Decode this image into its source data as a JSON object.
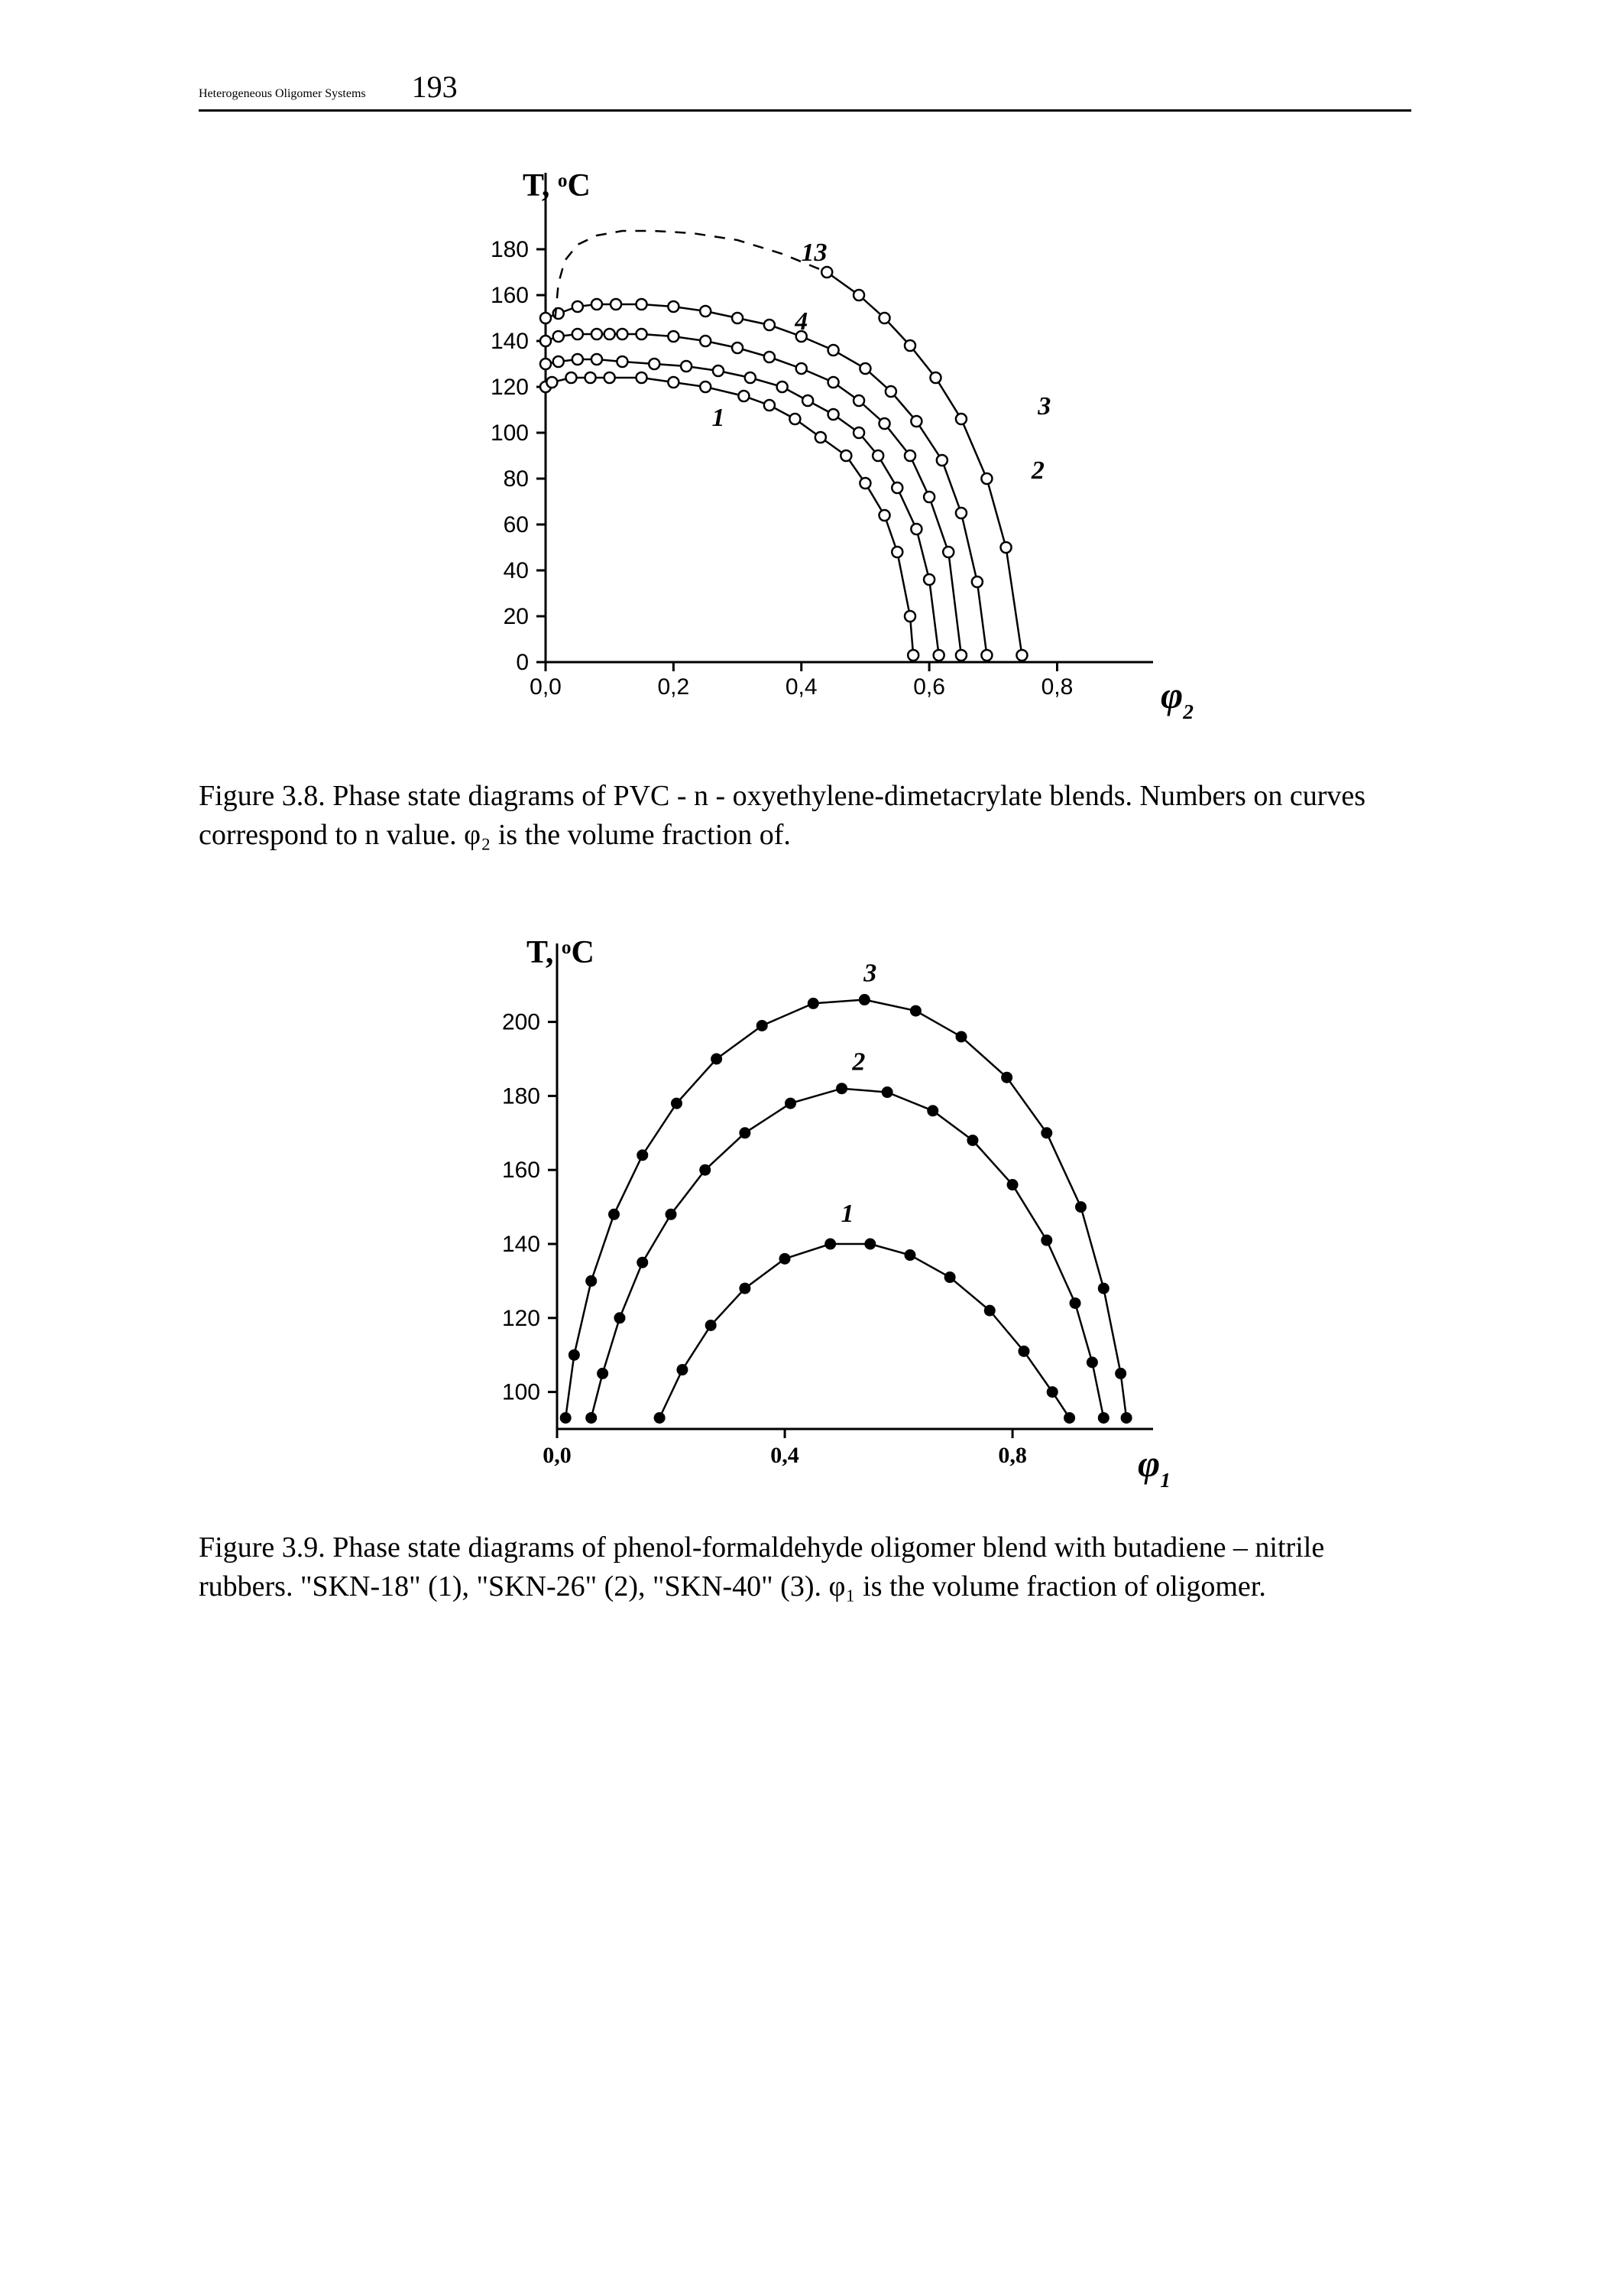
{
  "page": {
    "running_title": "Heterogeneous Oligomer Systems",
    "number": "193"
  },
  "fig8": {
    "type": "line",
    "y_axis": {
      "label_T": "T,",
      "label_unit": "°C",
      "min": 0,
      "max": 200,
      "ticks": [
        0,
        20,
        40,
        60,
        80,
        100,
        120,
        140,
        160,
        180
      ],
      "label_fontsize": 42,
      "tick_fontsize": 30,
      "tick_font": "Arial"
    },
    "x_axis": {
      "label": "φ",
      "label_sub": "2",
      "min": 0.0,
      "max": 0.95,
      "ticks": [
        "0,0",
        "0,2",
        "0,4",
        "0,6",
        "0,8"
      ],
      "tick_vals": [
        0.0,
        0.2,
        0.4,
        0.6,
        0.8
      ],
      "label_fontsize": 50,
      "tick_fontsize": 30
    },
    "marker": {
      "type": "open-circle",
      "radius": 7,
      "stroke": "#000000",
      "fill": "#ffffff",
      "stroke_width": 2.5
    },
    "line_color": "#000000",
    "line_width": 2.5,
    "background": "#ffffff",
    "curves": [
      {
        "id": "1",
        "label_xy": [
          0.27,
          103
        ],
        "pts": [
          [
            0.0,
            120
          ],
          [
            0.01,
            122
          ],
          [
            0.04,
            124
          ],
          [
            0.07,
            124
          ],
          [
            0.1,
            124
          ],
          [
            0.15,
            124
          ],
          [
            0.2,
            122
          ],
          [
            0.25,
            120
          ],
          [
            0.31,
            116
          ],
          [
            0.35,
            112
          ],
          [
            0.39,
            106
          ],
          [
            0.43,
            98
          ],
          [
            0.47,
            90
          ],
          [
            0.5,
            78
          ],
          [
            0.53,
            64
          ],
          [
            0.55,
            48
          ],
          [
            0.57,
            20
          ],
          [
            0.575,
            3
          ]
        ]
      },
      {
        "id": "2",
        "label_xy": [
          0.77,
          80
        ],
        "pts": [
          [
            0.0,
            130
          ],
          [
            0.02,
            131
          ],
          [
            0.05,
            132
          ],
          [
            0.08,
            132
          ],
          [
            0.12,
            131
          ],
          [
            0.17,
            130
          ],
          [
            0.22,
            129
          ],
          [
            0.27,
            127
          ],
          [
            0.32,
            124
          ],
          [
            0.37,
            120
          ],
          [
            0.41,
            114
          ],
          [
            0.45,
            108
          ],
          [
            0.49,
            100
          ],
          [
            0.52,
            90
          ],
          [
            0.55,
            76
          ],
          [
            0.58,
            58
          ],
          [
            0.6,
            36
          ],
          [
            0.615,
            3
          ]
        ]
      },
      {
        "id": "3",
        "label_xy": [
          0.78,
          108
        ],
        "pts": [
          [
            0.0,
            140
          ],
          [
            0.02,
            142
          ],
          [
            0.05,
            143
          ],
          [
            0.08,
            143
          ],
          [
            0.1,
            143
          ],
          [
            0.12,
            143
          ],
          [
            0.15,
            143
          ],
          [
            0.2,
            142
          ],
          [
            0.25,
            140
          ],
          [
            0.3,
            137
          ],
          [
            0.35,
            133
          ],
          [
            0.4,
            128
          ],
          [
            0.45,
            122
          ],
          [
            0.49,
            114
          ],
          [
            0.53,
            104
          ],
          [
            0.57,
            90
          ],
          [
            0.6,
            72
          ],
          [
            0.63,
            48
          ],
          [
            0.65,
            3
          ]
        ]
      },
      {
        "id": "4",
        "label_xy": [
          0.4,
          145
        ],
        "pts": [
          [
            0.0,
            150
          ],
          [
            0.02,
            152
          ],
          [
            0.05,
            155
          ],
          [
            0.08,
            156
          ],
          [
            0.11,
            156
          ],
          [
            0.15,
            156
          ],
          [
            0.2,
            155
          ],
          [
            0.25,
            153
          ],
          [
            0.3,
            150
          ],
          [
            0.35,
            147
          ],
          [
            0.4,
            142
          ],
          [
            0.45,
            136
          ],
          [
            0.5,
            128
          ],
          [
            0.54,
            118
          ],
          [
            0.58,
            105
          ],
          [
            0.62,
            88
          ],
          [
            0.65,
            65
          ],
          [
            0.675,
            35
          ],
          [
            0.69,
            3
          ]
        ]
      },
      {
        "id": "13",
        "label_xy": [
          0.42,
          175
        ],
        "dashed_until": 0.44,
        "pts": [
          [
            0.015,
            150
          ],
          [
            0.02,
            165
          ],
          [
            0.03,
            175
          ],
          [
            0.05,
            182
          ],
          [
            0.08,
            186
          ],
          [
            0.12,
            188
          ],
          [
            0.17,
            188
          ],
          [
            0.23,
            187
          ],
          [
            0.3,
            184
          ],
          [
            0.37,
            178
          ],
          [
            0.44,
            170
          ],
          [
            0.49,
            160
          ],
          [
            0.53,
            150
          ],
          [
            0.57,
            138
          ],
          [
            0.61,
            124
          ],
          [
            0.65,
            106
          ],
          [
            0.69,
            80
          ],
          [
            0.72,
            50
          ],
          [
            0.745,
            3
          ]
        ]
      }
    ],
    "caption": "Figure 3.8. Phase state diagrams of PVC - n - oxyethylene-dimetacrylate blends. Numbers on curves correspond to n value. φ₂ is the volume fraction of."
  },
  "fig9": {
    "type": "line",
    "y_axis": {
      "label_T": "T,",
      "label_unit": "°C",
      "min": 90,
      "max": 215,
      "ticks": [
        100,
        120,
        140,
        160,
        180,
        200
      ],
      "label_fontsize": 42,
      "tick_fontsize": 30
    },
    "x_axis": {
      "label": "φ",
      "label_sub": "1",
      "min": 0.0,
      "max": 1.02,
      "ticks": [
        "0,0",
        "0,4",
        "0,8"
      ],
      "tick_vals": [
        0.0,
        0.4,
        0.8
      ],
      "label_fontsize": 50,
      "tick_fontsize": 30
    },
    "marker": {
      "type": "filled-circle",
      "radius": 7,
      "stroke": "#000000",
      "fill": "#000000"
    },
    "line_color": "#000000",
    "line_width": 2.5,
    "background": "#ffffff",
    "curves": [
      {
        "id": "1",
        "label_xy": [
          0.51,
          146
        ],
        "pts": [
          [
            0.18,
            93
          ],
          [
            0.22,
            106
          ],
          [
            0.27,
            118
          ],
          [
            0.33,
            128
          ],
          [
            0.4,
            136
          ],
          [
            0.48,
            140
          ],
          [
            0.55,
            140
          ],
          [
            0.62,
            137
          ],
          [
            0.69,
            131
          ],
          [
            0.76,
            122
          ],
          [
            0.82,
            111
          ],
          [
            0.87,
            100
          ],
          [
            0.9,
            93
          ]
        ]
      },
      {
        "id": "2",
        "label_xy": [
          0.53,
          187
        ],
        "pts": [
          [
            0.06,
            93
          ],
          [
            0.08,
            105
          ],
          [
            0.11,
            120
          ],
          [
            0.15,
            135
          ],
          [
            0.2,
            148
          ],
          [
            0.26,
            160
          ],
          [
            0.33,
            170
          ],
          [
            0.41,
            178
          ],
          [
            0.5,
            182
          ],
          [
            0.58,
            181
          ],
          [
            0.66,
            176
          ],
          [
            0.73,
            168
          ],
          [
            0.8,
            156
          ],
          [
            0.86,
            141
          ],
          [
            0.91,
            124
          ],
          [
            0.94,
            108
          ],
          [
            0.96,
            93
          ]
        ]
      },
      {
        "id": "3",
        "label_xy": [
          0.55,
          211
        ],
        "pts": [
          [
            0.015,
            93
          ],
          [
            0.03,
            110
          ],
          [
            0.06,
            130
          ],
          [
            0.1,
            148
          ],
          [
            0.15,
            164
          ],
          [
            0.21,
            178
          ],
          [
            0.28,
            190
          ],
          [
            0.36,
            199
          ],
          [
            0.45,
            205
          ],
          [
            0.54,
            206
          ],
          [
            0.63,
            203
          ],
          [
            0.71,
            196
          ],
          [
            0.79,
            185
          ],
          [
            0.86,
            170
          ],
          [
            0.92,
            150
          ],
          [
            0.96,
            128
          ],
          [
            0.99,
            105
          ],
          [
            1.0,
            93
          ]
        ]
      }
    ],
    "caption": "Figure 3.9. Phase state diagrams of phenol-formaldehyde oligomer blend with butadiene – nitrile rubbers. \"SKN-18\" (1), \"SKN-26\" (2), \"SKN-40\" (3). φ₁ is the volume fraction of oligomer."
  }
}
